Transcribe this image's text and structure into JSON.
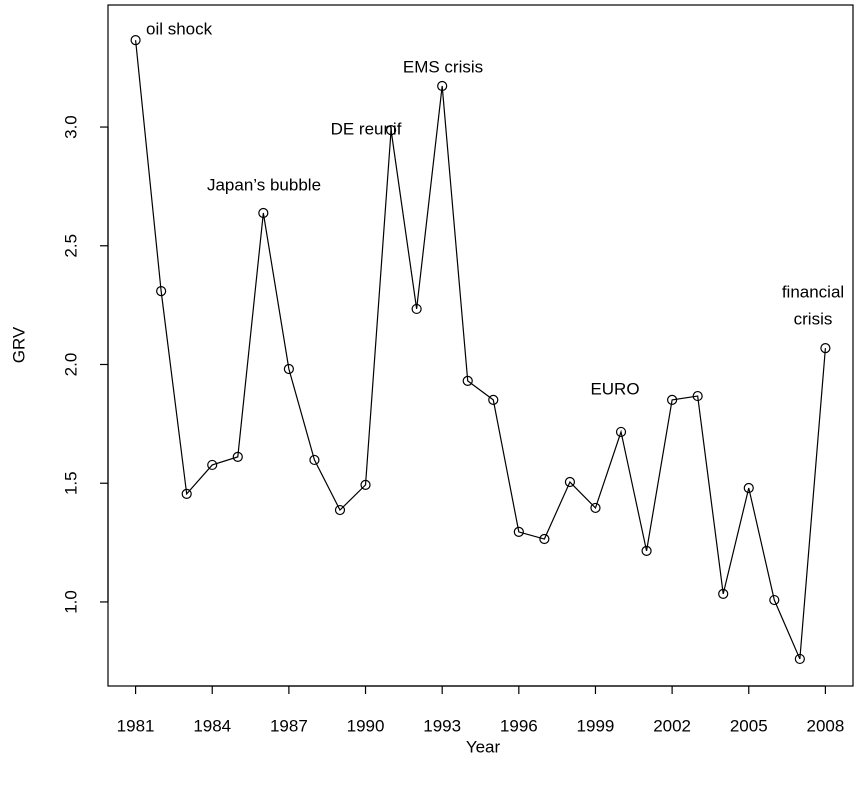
{
  "chart_data": {
    "type": "line",
    "xlabel": "Year",
    "ylabel": "GRV",
    "x": [
      1981,
      1982,
      1983,
      1984,
      1985,
      1986,
      1987,
      1988,
      1989,
      1990,
      1991,
      1992,
      1993,
      1994,
      1995,
      1996,
      1997,
      1998,
      1999,
      2000,
      2001,
      2002,
      2003,
      2004,
      2005,
      2006,
      2007,
      2008
    ],
    "series": [
      {
        "color": "#000000",
        "values": [
          3.366,
          2.309,
          1.455,
          1.577,
          1.611,
          2.638,
          1.981,
          1.598,
          1.387,
          1.493,
          2.987,
          2.234,
          3.173,
          1.931,
          1.851,
          1.295,
          1.265,
          1.505,
          1.396,
          1.716,
          1.215,
          1.851,
          1.867,
          1.034,
          1.48,
          1.008,
          0.76,
          2.069
        ]
      }
    ],
    "xlim": [
      1979.92,
      2009.08
    ],
    "ylim": [
      0.646,
      3.514
    ],
    "xticks": [
      1981,
      1984,
      1987,
      1990,
      1993,
      1996,
      1999,
      2002,
      2005,
      2008
    ],
    "yticks": [
      {
        "value": 1,
        "label": "1.0"
      },
      1.5,
      {
        "value": 2,
        "label": "2.0"
      },
      2.5,
      {
        "value": 3,
        "label": "3.0"
      }
    ],
    "annotations": [
      [
        "oil shock"
      ],
      [
        "Japan’s bubble"
      ],
      [
        "DE reunif"
      ],
      [
        "EMS crisis"
      ],
      [
        "EURO"
      ],
      [
        "financial",
        "crisis"
      ]
    ]
  }
}
